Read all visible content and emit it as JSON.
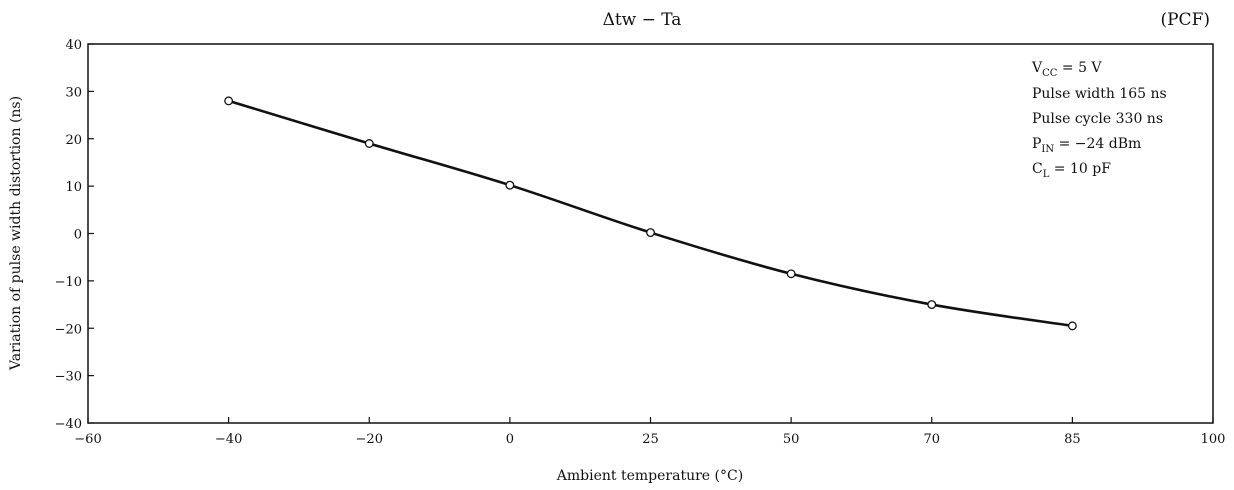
{
  "chart_data": {
    "type": "line",
    "title": "Δtw − Ta",
    "tag": "(PCF)",
    "xlabel": "Ambient temperature (°C)",
    "ylabel": "Variation of pulse width distortion (ns)",
    "xlim": [
      -60,
      100
    ],
    "ylim": [
      -40,
      40
    ],
    "x_ticks": [
      -60,
      -40,
      -20,
      0,
      25,
      50,
      70,
      85,
      100
    ],
    "x_tick_labels": [
      "−60",
      "−40",
      "−20",
      "0",
      "25",
      "50",
      "70",
      "85",
      "100"
    ],
    "y_ticks": [
      40,
      30,
      20,
      10,
      0,
      -10,
      -20,
      -30,
      -40
    ],
    "y_tick_labels": [
      "40",
      "30",
      "20",
      "10",
      "0",
      "−10",
      "−20",
      "−30",
      "−40"
    ],
    "grid": false,
    "series": [
      {
        "x": [
          -40,
          -20,
          0,
          25,
          50,
          70,
          85
        ],
        "y": [
          28,
          19,
          10.2,
          0.2,
          -8.5,
          -15,
          -19.5
        ]
      }
    ],
    "conditions": {
      "vcc": {
        "main": "V",
        "sub": "CC",
        "rest": " = 5 V"
      },
      "pulse_width": "Pulse width 165 ns",
      "pulse_cycle": "Pulse cycle 330 ns",
      "pin": {
        "main": "P",
        "sub": "IN",
        "rest": " = −24 dBm"
      },
      "cl": {
        "main": "C",
        "sub": "L",
        "rest": " = 10 pF"
      }
    }
  }
}
